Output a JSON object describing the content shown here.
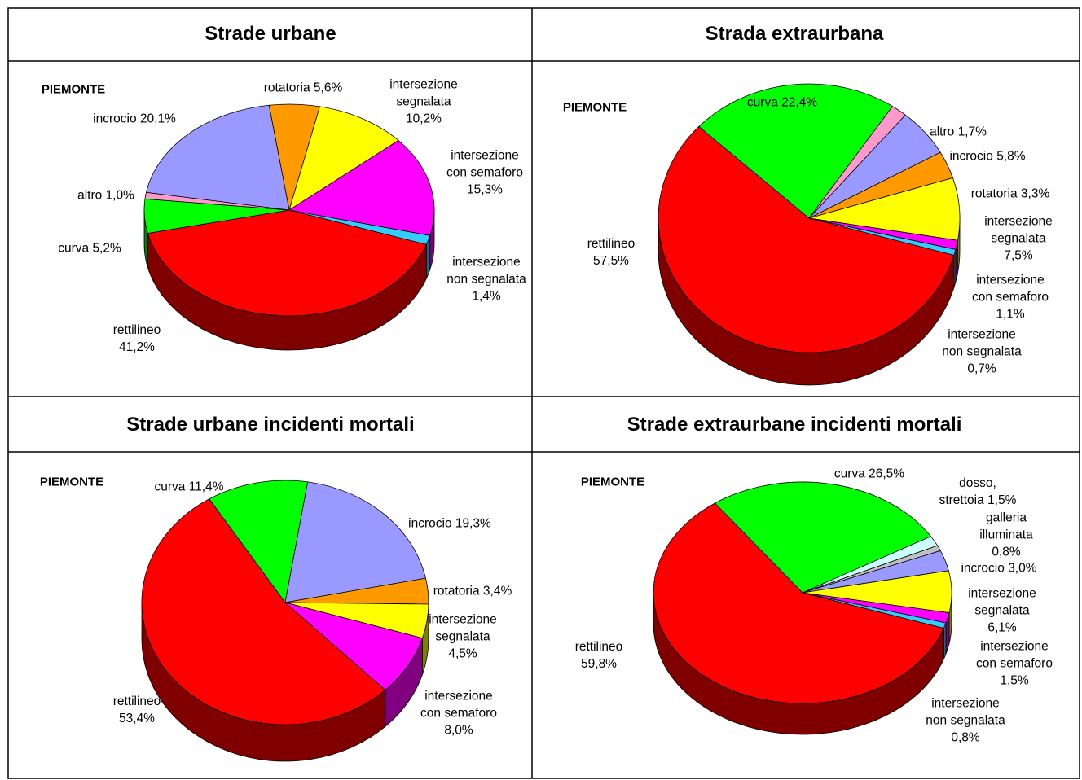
{
  "chart_data": [
    {
      "type": "pie",
      "title": "Strade urbane",
      "subtitle": "PIEMONTE",
      "categories": [
        "rotatoria",
        "intersezione segnalata",
        "intersezione con semaforo",
        "intersezione non segnalata",
        "rettilineo",
        "curva",
        "altro",
        "incrocio"
      ],
      "values": [
        5.6,
        10.2,
        15.3,
        1.4,
        41.2,
        5.2,
        1.0,
        20.1
      ],
      "value_labels": [
        "5,6%",
        "10,2%",
        "15,3%",
        "1,4%",
        "41,2%",
        "5,2%",
        "1,0%",
        "20,1%"
      ],
      "colors": [
        "#ff9900",
        "#ffff00",
        "#ff00ff",
        "#33ccff",
        "#ff0000",
        "#00ff00",
        "#ff99cc",
        "#9999ff"
      ]
    },
    {
      "type": "pie",
      "title": "Strada extraurbana",
      "subtitle": "PIEMONTE",
      "categories": [
        "curva",
        "altro",
        "incrocio",
        "rotatoria",
        "intersezione segnalata",
        "intersezione con semaforo",
        "intersezione non segnalata",
        "rettilineo"
      ],
      "values": [
        22.4,
        1.7,
        5.8,
        3.3,
        7.5,
        1.1,
        0.7,
        57.5
      ],
      "value_labels": [
        "22,4%",
        "1,7%",
        "5,8%",
        "3,3%",
        "7,5%",
        "1,1%",
        "0,7%",
        "57,5%"
      ],
      "colors": [
        "#00ff00",
        "#ff99cc",
        "#9999ff",
        "#ff9900",
        "#ffff00",
        "#ff00ff",
        "#33ccff",
        "#ff0000"
      ]
    },
    {
      "type": "pie",
      "title": "Strade urbane incidenti mortali",
      "subtitle": "PIEMONTE",
      "categories": [
        "curva",
        "incrocio",
        "rotatoria",
        "intersezione segnalata",
        "intersezione con semaforo",
        "rettilineo"
      ],
      "values": [
        11.4,
        19.3,
        3.4,
        4.5,
        8.0,
        53.4
      ],
      "value_labels": [
        "11,4%",
        "19,3%",
        "3,4%",
        "4,5%",
        "8,0%",
        "53,4%"
      ],
      "colors": [
        "#00ff00",
        "#9999ff",
        "#ff9900",
        "#ffff00",
        "#ff00ff",
        "#ff0000"
      ]
    },
    {
      "type": "pie",
      "title": "Strade extraurbane incidenti mortali",
      "subtitle": "PIEMONTE",
      "categories": [
        "curva",
        "dosso, strettoia",
        "galleria illuminata",
        "incrocio",
        "intersezione segnalata",
        "intersezione con semaforo",
        "intersezione non segnalata",
        "rettilineo"
      ],
      "values": [
        26.5,
        1.5,
        0.8,
        3.0,
        6.1,
        1.5,
        0.8,
        59.8
      ],
      "value_labels": [
        "26,5%",
        "1,5%",
        "0,8%",
        "3,0%",
        "6,1%",
        "1,5%",
        "0,8%",
        "59,8%"
      ],
      "colors": [
        "#00ff00",
        "#ccffff",
        "#c0c0c0",
        "#9999ff",
        "#ffff00",
        "#ff00ff",
        "#33ccff",
        "#ff0000"
      ]
    }
  ]
}
